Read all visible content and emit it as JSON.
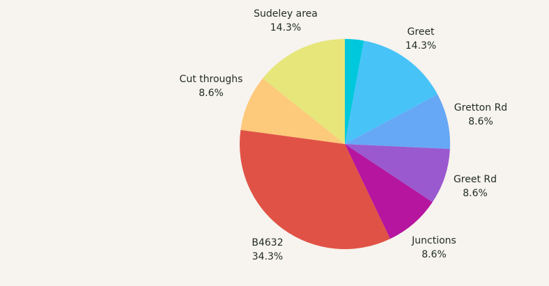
{
  "chart_data": {
    "type": "pie",
    "start": "top",
    "direction": "clockwise",
    "slices": [
      {
        "label": "",
        "percent_label": "",
        "value": 2.9,
        "color": "#00c8dc"
      },
      {
        "label": "Greet",
        "percent_label": "14.3%",
        "value": 14.3,
        "color": "#48c3f8"
      },
      {
        "label": "Gretton Rd",
        "percent_label": "8.6%",
        "value": 8.6,
        "color": "#66a8f5"
      },
      {
        "label": "Greet Rd",
        "percent_label": "8.6%",
        "value": 8.6,
        "color": "#9b59cf"
      },
      {
        "label": "Junctions",
        "percent_label": "8.6%",
        "value": 8.6,
        "color": "#b5159f"
      },
      {
        "label": "B4632",
        "percent_label": "34.3%",
        "value": 34.3,
        "color": "#e05246"
      },
      {
        "label": "Cut throughs",
        "percent_label": "8.6%",
        "value": 8.6,
        "color": "#fdc97a"
      },
      {
        "label": "Sudeley area",
        "percent_label": "14.3%",
        "value": 14.3,
        "color": "#e6e67a"
      }
    ],
    "background": "#f7f3ee"
  }
}
